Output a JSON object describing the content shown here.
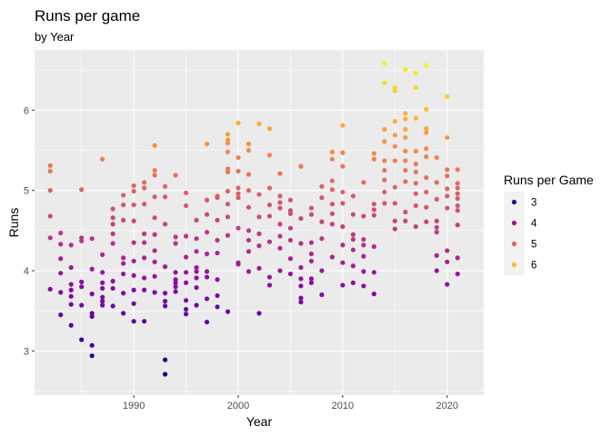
{
  "chart_data": {
    "type": "scatter",
    "title": "Runs per game",
    "subtitle": "by Year",
    "xlabel": "Year",
    "ylabel": "Runs",
    "xlim": [
      1980.5,
      2023.5
    ],
    "ylim": [
      2.45,
      6.75
    ],
    "x_ticks": [
      1990,
      2000,
      2010,
      2020
    ],
    "y_ticks": [
      3,
      4,
      5,
      6
    ],
    "grid": true,
    "background": "#ebebeb",
    "color_scale": {
      "name": "plasma",
      "min": 2.7,
      "max": 6.6,
      "stops": [
        "#0d0887",
        "#5402a3",
        "#8b0aa5",
        "#b83289",
        "#db5c68",
        "#f48849",
        "#febd2a",
        "#f0f921"
      ]
    },
    "legend": {
      "title": "Runs per Game",
      "placement": "right",
      "entries": [
        {
          "label": "3",
          "value": 3
        },
        {
          "label": "4",
          "value": 4
        },
        {
          "label": "5",
          "value": 5
        },
        {
          "label": "6",
          "value": 6
        }
      ]
    },
    "points": [
      [
        1982,
        5.31
      ],
      [
        1982,
        5.24
      ],
      [
        1982,
        5.0
      ],
      [
        1982,
        4.68
      ],
      [
        1982,
        4.41
      ],
      [
        1982,
        3.77
      ],
      [
        1983,
        4.47
      ],
      [
        1983,
        4.33
      ],
      [
        1983,
        4.15
      ],
      [
        1983,
        3.97
      ],
      [
        1983,
        3.73
      ],
      [
        1983,
        3.45
      ],
      [
        1984,
        4.32
      ],
      [
        1984,
        4.04
      ],
      [
        1984,
        3.83
      ],
      [
        1984,
        3.76
      ],
      [
        1984,
        3.68
      ],
      [
        1984,
        3.58
      ],
      [
        1984,
        3.32
      ],
      [
        1985,
        5.01
      ],
      [
        1985,
        4.41
      ],
      [
        1985,
        4.37
      ],
      [
        1985,
        3.86
      ],
      [
        1985,
        3.8
      ],
      [
        1985,
        3.57
      ],
      [
        1985,
        3.14
      ],
      [
        1986,
        4.4
      ],
      [
        1986,
        4.02
      ],
      [
        1986,
        3.71
      ],
      [
        1986,
        3.47
      ],
      [
        1986,
        3.43
      ],
      [
        1986,
        3.07
      ],
      [
        1986,
        2.94
      ],
      [
        1987,
        5.39
      ],
      [
        1987,
        4.2
      ],
      [
        1987,
        3.98
      ],
      [
        1987,
        3.85
      ],
      [
        1987,
        3.78
      ],
      [
        1987,
        3.67
      ],
      [
        1987,
        3.62
      ],
      [
        1987,
        3.57
      ],
      [
        1988,
        4.77
      ],
      [
        1988,
        4.66
      ],
      [
        1988,
        4.58
      ],
      [
        1988,
        4.46
      ],
      [
        1988,
        4.34
      ],
      [
        1988,
        3.87
      ],
      [
        1988,
        3.78
      ],
      [
        1988,
        3.56
      ],
      [
        1989,
        4.94
      ],
      [
        1989,
        4.82
      ],
      [
        1989,
        4.63
      ],
      [
        1989,
        4.16
      ],
      [
        1989,
        4.09
      ],
      [
        1989,
        3.96
      ],
      [
        1989,
        3.72
      ],
      [
        1989,
        3.47
      ],
      [
        1990,
        5.06
      ],
      [
        1990,
        4.99
      ],
      [
        1990,
        4.82
      ],
      [
        1990,
        4.62
      ],
      [
        1990,
        4.35
      ],
      [
        1990,
        4.12
      ],
      [
        1990,
        3.94
      ],
      [
        1990,
        3.76
      ],
      [
        1990,
        3.59
      ],
      [
        1990,
        3.37
      ],
      [
        1991,
        5.1
      ],
      [
        1991,
        5.03
      ],
      [
        1991,
        4.83
      ],
      [
        1991,
        4.46
      ],
      [
        1991,
        4.35
      ],
      [
        1991,
        4.16
      ],
      [
        1991,
        3.91
      ],
      [
        1991,
        3.76
      ],
      [
        1991,
        3.37
      ],
      [
        1992,
        5.56
      ],
      [
        1992,
        5.25
      ],
      [
        1992,
        5.19
      ],
      [
        1992,
        4.92
      ],
      [
        1992,
        4.66
      ],
      [
        1992,
        4.45
      ],
      [
        1992,
        4.25
      ],
      [
        1992,
        4.11
      ],
      [
        1992,
        3.93
      ],
      [
        1992,
        3.73
      ],
      [
        1993,
        5.05
      ],
      [
        1993,
        4.92
      ],
      [
        1993,
        4.58
      ],
      [
        1993,
        4.05
      ],
      [
        1993,
        3.72
      ],
      [
        1993,
        3.62
      ],
      [
        1993,
        3.56
      ],
      [
        1993,
        2.89
      ],
      [
        1993,
        2.71
      ],
      [
        1994,
        5.19
      ],
      [
        1994,
        4.42
      ],
      [
        1994,
        4.34
      ],
      [
        1994,
        3.98
      ],
      [
        1994,
        3.89
      ],
      [
        1994,
        3.85
      ],
      [
        1994,
        3.8
      ],
      [
        1994,
        3.74
      ],
      [
        1995,
        4.97
      ],
      [
        1995,
        4.81
      ],
      [
        1995,
        4.43
      ],
      [
        1995,
        4.17
      ],
      [
        1995,
        3.98
      ],
      [
        1995,
        3.85
      ],
      [
        1995,
        3.63
      ],
      [
        1995,
        3.52
      ],
      [
        1995,
        3.46
      ],
      [
        1996,
        4.63
      ],
      [
        1996,
        4.4
      ],
      [
        1996,
        4.24
      ],
      [
        1996,
        4.04
      ],
      [
        1996,
        3.99
      ],
      [
        1996,
        3.91
      ],
      [
        1996,
        3.79
      ],
      [
        1996,
        3.57
      ],
      [
        1997,
        5.58
      ],
      [
        1997,
        4.88
      ],
      [
        1997,
        4.7
      ],
      [
        1997,
        4.48
      ],
      [
        1997,
        4.21
      ],
      [
        1997,
        3.99
      ],
      [
        1997,
        3.92
      ],
      [
        1997,
        3.65
      ],
      [
        1997,
        3.36
      ],
      [
        1998,
        4.93
      ],
      [
        1998,
        4.91
      ],
      [
        1998,
        4.63
      ],
      [
        1998,
        4.38
      ],
      [
        1998,
        4.22
      ],
      [
        1998,
        3.89
      ],
      [
        1998,
        3.69
      ],
      [
        1998,
        3.55
      ],
      [
        1999,
        5.7
      ],
      [
        1999,
        5.63
      ],
      [
        1999,
        5.59
      ],
      [
        1999,
        5.48
      ],
      [
        1999,
        5.27
      ],
      [
        1999,
        5.23
      ],
      [
        1999,
        4.99
      ],
      [
        1999,
        4.83
      ],
      [
        1999,
        4.67
      ],
      [
        1999,
        4.44
      ],
      [
        1999,
        3.49
      ],
      [
        2000,
        5.84
      ],
      [
        2000,
        5.41
      ],
      [
        2000,
        5.24
      ],
      [
        2000,
        5.03
      ],
      [
        2000,
        4.96
      ],
      [
        2000,
        4.91
      ],
      [
        2000,
        4.53
      ],
      [
        2000,
        4.1
      ],
      [
        2000,
        4.08
      ],
      [
        2001,
        5.58
      ],
      [
        2001,
        5.5
      ],
      [
        2001,
        5.2
      ],
      [
        2001,
        5.0
      ],
      [
        2001,
        4.79
      ],
      [
        2001,
        4.5
      ],
      [
        2001,
        4.38
      ],
      [
        2001,
        4.24
      ],
      [
        2001,
        3.99
      ],
      [
        2002,
        5.83
      ],
      [
        2002,
        4.95
      ],
      [
        2002,
        4.67
      ],
      [
        2002,
        4.46
      ],
      [
        2002,
        4.31
      ],
      [
        2002,
        4.03
      ],
      [
        2002,
        3.47
      ],
      [
        2003,
        5.77
      ],
      [
        2003,
        5.44
      ],
      [
        2003,
        5.03
      ],
      [
        2003,
        4.82
      ],
      [
        2003,
        4.68
      ],
      [
        2003,
        4.36
      ],
      [
        2003,
        3.92
      ],
      [
        2003,
        3.82
      ],
      [
        2004,
        5.21
      ],
      [
        2004,
        4.93
      ],
      [
        2004,
        4.85
      ],
      [
        2004,
        4.78
      ],
      [
        2004,
        4.58
      ],
      [
        2004,
        4.43
      ],
      [
        2004,
        4.28
      ],
      [
        2004,
        4.0
      ],
      [
        2005,
        4.88
      ],
      [
        2005,
        4.75
      ],
      [
        2005,
        4.71
      ],
      [
        2005,
        4.53
      ],
      [
        2005,
        4.38
      ],
      [
        2005,
        4.15
      ],
      [
        2005,
        3.96
      ],
      [
        2006,
        5.3
      ],
      [
        2006,
        4.65
      ],
      [
        2006,
        4.34
      ],
      [
        2006,
        4.04
      ],
      [
        2006,
        3.9
      ],
      [
        2006,
        3.81
      ],
      [
        2006,
        3.66
      ],
      [
        2006,
        3.61
      ],
      [
        2007,
        4.78
      ],
      [
        2007,
        4.7
      ],
      [
        2007,
        4.35
      ],
      [
        2007,
        4.21
      ],
      [
        2007,
        4.12
      ],
      [
        2007,
        3.9
      ],
      [
        2007,
        3.85
      ],
      [
        2008,
        5.05
      ],
      [
        2008,
        4.91
      ],
      [
        2008,
        4.61
      ],
      [
        2008,
        4.4
      ],
      [
        2008,
        4.0
      ],
      [
        2008,
        3.7
      ],
      [
        2009,
        5.48
      ],
      [
        2009,
        5.39
      ],
      [
        2009,
        5.12
      ],
      [
        2009,
        5.01
      ],
      [
        2009,
        4.83
      ],
      [
        2009,
        4.71
      ],
      [
        2009,
        4.58
      ],
      [
        2009,
        4.17
      ],
      [
        2010,
        5.81
      ],
      [
        2010,
        5.47
      ],
      [
        2010,
        5.3
      ],
      [
        2010,
        4.98
      ],
      [
        2010,
        4.84
      ],
      [
        2010,
        4.55
      ],
      [
        2010,
        4.32
      ],
      [
        2010,
        4.1
      ],
      [
        2010,
        3.82
      ],
      [
        2011,
        4.93
      ],
      [
        2011,
        4.7
      ],
      [
        2011,
        4.45
      ],
      [
        2011,
        4.39
      ],
      [
        2011,
        4.26
      ],
      [
        2011,
        4.06
      ],
      [
        2011,
        3.85
      ],
      [
        2012,
        5.1
      ],
      [
        2012,
        4.68
      ],
      [
        2012,
        4.39
      ],
      [
        2012,
        4.32
      ],
      [
        2012,
        4.18
      ],
      [
        2012,
        3.99
      ],
      [
        2012,
        3.81
      ],
      [
        2013,
        5.46
      ],
      [
        2013,
        5.39
      ],
      [
        2013,
        4.83
      ],
      [
        2013,
        4.76
      ],
      [
        2013,
        4.69
      ],
      [
        2013,
        4.3
      ],
      [
        2013,
        3.98
      ],
      [
        2013,
        3.71
      ],
      [
        2014,
        6.58
      ],
      [
        2014,
        6.34
      ],
      [
        2014,
        5.76
      ],
      [
        2014,
        5.61
      ],
      [
        2014,
        5.37
      ],
      [
        2014,
        5.25
      ],
      [
        2014,
        5.13
      ],
      [
        2014,
        4.98
      ],
      [
        2014,
        4.84
      ],
      [
        2015,
        6.28
      ],
      [
        2015,
        6.24
      ],
      [
        2015,
        5.86
      ],
      [
        2015,
        5.69
      ],
      [
        2015,
        5.55
      ],
      [
        2015,
        5.37
      ],
      [
        2015,
        5.04
      ],
      [
        2015,
        4.84
      ],
      [
        2015,
        4.62
      ],
      [
        2015,
        4.52
      ],
      [
        2016,
        6.51
      ],
      [
        2016,
        5.96
      ],
      [
        2016,
        5.89
      ],
      [
        2016,
        5.76
      ],
      [
        2016,
        5.66
      ],
      [
        2016,
        5.49
      ],
      [
        2016,
        5.37
      ],
      [
        2016,
        5.25
      ],
      [
        2016,
        5.11
      ],
      [
        2016,
        4.73
      ],
      [
        2016,
        4.62
      ],
      [
        2017,
        6.46
      ],
      [
        2017,
        6.28
      ],
      [
        2017,
        5.9
      ],
      [
        2017,
        5.49
      ],
      [
        2017,
        5.33
      ],
      [
        2017,
        5.23
      ],
      [
        2017,
        5.09
      ],
      [
        2017,
        4.96
      ],
      [
        2017,
        4.81
      ],
      [
        2017,
        4.55
      ],
      [
        2018,
        6.56
      ],
      [
        2018,
        6.01
      ],
      [
        2018,
        5.77
      ],
      [
        2018,
        5.72
      ],
      [
        2018,
        5.52
      ],
      [
        2018,
        5.42
      ],
      [
        2018,
        5.16
      ],
      [
        2018,
        4.98
      ],
      [
        2018,
        4.79
      ],
      [
        2018,
        4.61
      ],
      [
        2019,
        5.41
      ],
      [
        2019,
        5.1
      ],
      [
        2019,
        4.89
      ],
      [
        2019,
        4.62
      ],
      [
        2019,
        4.54
      ],
      [
        2019,
        4.48
      ],
      [
        2019,
        4.19
      ],
      [
        2019,
        4.0
      ],
      [
        2020,
        6.17
      ],
      [
        2020,
        5.66
      ],
      [
        2020,
        5.26
      ],
      [
        2020,
        5.18
      ],
      [
        2020,
        5.02
      ],
      [
        2020,
        4.93
      ],
      [
        2020,
        4.78
      ],
      [
        2020,
        4.25
      ],
      [
        2020,
        4.11
      ],
      [
        2020,
        3.83
      ],
      [
        2021,
        5.26
      ],
      [
        2021,
        5.09
      ],
      [
        2021,
        5.03
      ],
      [
        2021,
        4.96
      ],
      [
        2021,
        4.9
      ],
      [
        2021,
        4.81
      ],
      [
        2021,
        4.75
      ],
      [
        2021,
        4.57
      ],
      [
        2021,
        4.16
      ],
      [
        2021,
        3.96
      ]
    ]
  }
}
